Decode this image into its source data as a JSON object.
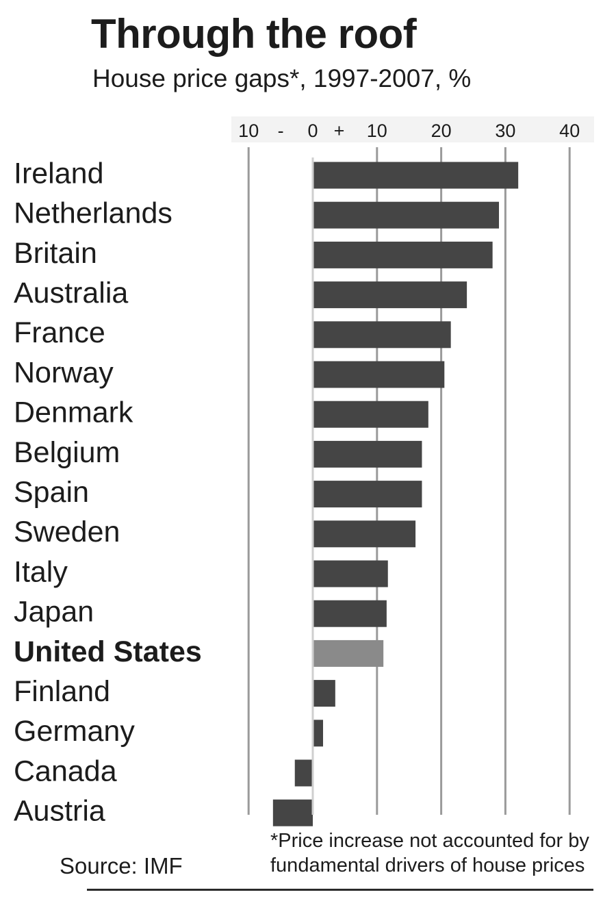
{
  "title": "Through the roof",
  "subtitle": "House price gaps*, 1997-2007, %",
  "chart_data": {
    "type": "bar",
    "orientation": "horizontal",
    "categories": [
      "Ireland",
      "Netherlands",
      "Britain",
      "Australia",
      "France",
      "Norway",
      "Denmark",
      "Belgium",
      "Spain",
      "Sweden",
      "Italy",
      "Japan",
      "United States",
      "Finland",
      "Germany",
      "Canada",
      "Austria"
    ],
    "values": [
      32,
      29,
      28,
      24,
      21.5,
      20.5,
      18,
      17,
      17,
      16,
      11.7,
      11.5,
      11,
      3.5,
      1.6,
      -2.8,
      -6.2
    ],
    "highlight": "United States",
    "xlim": [
      -10,
      40
    ],
    "tick_labels": [
      "10",
      "-",
      "0",
      "+",
      "10",
      "20",
      "30",
      "40"
    ],
    "grid": true,
    "colors": {
      "bar": "#454545",
      "highlight": "#8a8a8a",
      "grid": "#9a9a9a"
    }
  },
  "source": "Source: IMF",
  "footnote": [
    "*Price increase not accounted for by",
    "fundamental drivers of house prices"
  ]
}
